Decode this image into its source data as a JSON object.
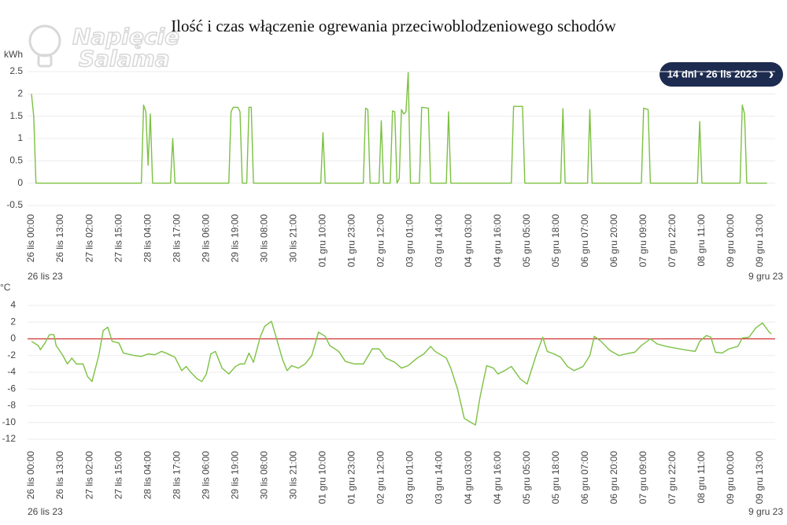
{
  "title": "Ilość i czas włączenie ogrewania przeciwoblodzeniowego schodów",
  "logo": [
    "Napięcie",
    "Salama"
  ],
  "range_button": {
    "label": "14 dni • 26 lis 2023",
    "arrow": "›"
  },
  "chart_data": [
    {
      "type": "line",
      "y_label": "kWh",
      "color": "#7cc142",
      "grid": true,
      "ylim": [
        -0.5,
        2.5
      ],
      "yticks": [
        2.5,
        2,
        1.5,
        1,
        0.5,
        0,
        -0.5
      ],
      "xticks": [
        "26 lis 00:00",
        "26 lis 13:00",
        "27 lis 02:00",
        "27 lis 15:00",
        "28 lis 04:00",
        "28 lis 17:00",
        "29 lis 06:00",
        "29 lis 19:00",
        "30 lis 08:00",
        "30 lis 21:00",
        "01 gru 10:00",
        "01 gru 23:00",
        "02 gru 12:00",
        "03 gru 01:00",
        "03 gru 14:00",
        "04 gru 03:00",
        "04 gru 16:00",
        "05 gru 05:00",
        "05 gru 18:00",
        "06 gru 07:00",
        "06 gru 20:00",
        "07 gru 09:00",
        "07 gru 22:00",
        "08 gru 11:00",
        "09 gru 00:00",
        "09 gru 13:00"
      ],
      "start_label": "26 lis 23",
      "end_label": "9 gru 23",
      "x": [
        "26 lis 00:00",
        "26 lis 01:00",
        "26 lis 02:00",
        "27 lis 12:00",
        "28 lis 01:00",
        "28 lis 02:00",
        "28 lis 03:00",
        "28 lis 04:00",
        "28 lis 05:00",
        "28 lis 06:00",
        "28 lis 14:00",
        "28 lis 15:00",
        "28 lis 16:00",
        "29 lis 16:00",
        "29 lis 17:00",
        "29 lis 18:00",
        "29 lis 20:00",
        "29 lis 21:00",
        "29 lis 22:00",
        "30 lis 00:00",
        "30 lis 01:00",
        "30 lis 02:00",
        "30 lis 03:00",
        "01 gru 09:00",
        "01 gru 10:00",
        "01 gru 11:00",
        "02 gru 04:00",
        "02 gru 05:00",
        "02 gru 06:00",
        "02 gru 07:00",
        "02 gru 11:00",
        "02 gru 12:00",
        "02 gru 13:00",
        "02 gru 16:00",
        "02 gru 17:00",
        "02 gru 18:00",
        "02 gru 19:00",
        "02 gru 20:00",
        "02 gru 21:00",
        "02 gru 22:00",
        "02 gru 23:00",
        "03 gru 00:00",
        "03 gru 01:00",
        "03 gru 05:00",
        "03 gru 06:00",
        "03 gru 09:00",
        "03 gru 10:00",
        "03 gru 17:00",
        "03 gru 18:00",
        "03 gru 19:00",
        "04 gru 12:00",
        "04 gru 22:00",
        "04 gru 23:00",
        "05 gru 03:00",
        "05 gru 04:00",
        "05 gru 20:00",
        "05 gru 21:00",
        "05 gru 22:00",
        "06 gru 08:00",
        "06 gru 09:00",
        "06 gru 10:00",
        "07 gru 08:00",
        "07 gru 09:00",
        "07 gru 11:00",
        "07 gru 12:00",
        "08 gru 09:00",
        "08 gru 10:00",
        "08 gru 11:00",
        "09 gru 04:00",
        "09 gru 05:00",
        "09 gru 06:00",
        "09 gru 07:00",
        "09 gru 16:00"
      ],
      "values": [
        2.0,
        1.5,
        0,
        0,
        0,
        1.75,
        1.6,
        0.4,
        1.55,
        0,
        0,
        1.0,
        0,
        0,
        1.6,
        1.7,
        1.7,
        1.6,
        0,
        0,
        1.7,
        1.7,
        0,
        0,
        1.13,
        0,
        0,
        1.68,
        1.65,
        0,
        0,
        1.4,
        0,
        0,
        1.62,
        1.6,
        0,
        0.1,
        1.65,
        1.55,
        1.6,
        2.48,
        0,
        0,
        1.7,
        1.68,
        0,
        0,
        1.6,
        0,
        0,
        0,
        1.72,
        1.72,
        0,
        0,
        1.67,
        0,
        0,
        1.65,
        0,
        0,
        1.68,
        1.65,
        0,
        0,
        1.38,
        0,
        0,
        1.75,
        1.55,
        0,
        0
      ]
    },
    {
      "type": "line",
      "y_label": "°C",
      "color": "#7cc142",
      "grid": true,
      "ylim": [
        -12,
        4
      ],
      "yticks": [
        4,
        2,
        0,
        -2,
        -4,
        -6,
        -8,
        -10,
        -12
      ],
      "reference_lines": [
        {
          "value": 0,
          "color": "#d32f2f"
        }
      ],
      "xticks": [
        "26 lis 00:00",
        "26 lis 13:00",
        "27 lis 02:00",
        "27 lis 15:00",
        "28 lis 04:00",
        "28 lis 17:00",
        "29 lis 06:00",
        "29 lis 19:00",
        "30 lis 08:00",
        "30 lis 21:00",
        "01 gru 10:00",
        "01 gru 23:00",
        "02 gru 12:00",
        "03 gru 01:00",
        "03 gru 14:00",
        "04 gru 03:00",
        "04 gru 16:00",
        "05 gru 05:00",
        "05 gru 18:00",
        "06 gru 07:00",
        "06 gru 20:00",
        "07 gru 09:00",
        "07 gru 22:00",
        "08 gru 11:00",
        "09 gru 00:00",
        "09 gru 13:00"
      ],
      "start_label": "26 lis 23",
      "end_label": "9 gru 23",
      "x": [
        "26 lis 00:00",
        "26 lis 03:00",
        "26 lis 04:00",
        "26 lis 06:00",
        "26 lis 08:00",
        "26 lis 10:00",
        "26 lis 11:00",
        "26 lis 14:00",
        "26 lis 16:00",
        "26 lis 18:00",
        "26 lis 20:00",
        "26 lis 23:00",
        "27 lis 01:00",
        "27 lis 03:00",
        "27 lis 06:00",
        "27 lis 08:00",
        "27 lis 10:00",
        "27 lis 12:00",
        "27 lis 15:00",
        "27 lis 17:00",
        "27 lis 22:00",
        "28 lis 01:00",
        "28 lis 04:00",
        "28 lis 07:00",
        "28 lis 10:00",
        "28 lis 12:00",
        "28 lis 16:00",
        "28 lis 19:00",
        "28 lis 21:00",
        "28 lis 23:00",
        "29 lis 02:00",
        "29 lis 04:00",
        "29 lis 06:00",
        "29 lis 08:00",
        "29 lis 10:00",
        "29 lis 13:00",
        "29 lis 16:00",
        "29 lis 19:00",
        "29 lis 21:00",
        "29 lis 23:00",
        "30 lis 01:00",
        "30 lis 03:00",
        "30 lis 06:00",
        "30 lis 08:00",
        "30 lis 11:00",
        "30 lis 13:00",
        "30 lis 16:00",
        "30 lis 18:00",
        "30 lis 20:00",
        "30 lis 23:00",
        "01 gru 02:00",
        "01 gru 05:00",
        "01 gru 08:00",
        "01 gru 11:00",
        "01 gru 13:00",
        "01 gru 17:00",
        "01 gru 20:00",
        "02 gru 00:00",
        "02 gru 04:00",
        "02 gru 08:00",
        "02 gru 11:00",
        "02 gru 14:00",
        "02 gru 18:00",
        "02 gru 21:00",
        "03 gru 00:00",
        "03 gru 04:00",
        "03 gru 07:00",
        "03 gru 10:00",
        "03 gru 12:00",
        "03 gru 17:00",
        "03 gru 19:00",
        "03 gru 22:00",
        "04 gru 01:00",
        "04 gru 04:00",
        "04 gru 06:00",
        "04 gru 08:00",
        "04 gru 11:00",
        "04 gru 14:00",
        "04 gru 16:00",
        "04 gru 19:00",
        "04 gru 22:00",
        "05 gru 02:00",
        "05 gru 05:00",
        "05 gru 09:00",
        "05 gru 12:00",
        "05 gru 14:00",
        "05 gru 17:00",
        "05 gru 20:00",
        "05 gru 23:00",
        "06 gru 02:00",
        "06 gru 06:00",
        "06 gru 09:00",
        "06 gru 11:00",
        "06 gru 14:00",
        "06 gru 18:00",
        "06 gru 22:00",
        "07 gru 01:00",
        "07 gru 05:00",
        "07 gru 08:00",
        "07 gru 12:00",
        "07 gru 15:00",
        "07 gru 19:00",
        "07 gru 23:00",
        "08 gru 03:00",
        "08 gru 08:00",
        "08 gru 10:00",
        "08 gru 13:00",
        "08 gru 15:00",
        "08 gru 17:00",
        "08 gru 20:00",
        "08 gru 23:00",
        "09 gru 03:00",
        "09 gru 05:00",
        "09 gru 08:00",
        "09 gru 11:00",
        "09 gru 14:00",
        "09 gru 17:00",
        "09 gru 18:00"
      ],
      "values": [
        -0.3,
        -0.8,
        -1.3,
        -0.5,
        0.5,
        0.5,
        -0.8,
        -2,
        -3,
        -2.3,
        -3,
        -3,
        -4.5,
        -5.1,
        -2,
        1,
        1.4,
        -0.3,
        -0.5,
        -1.7,
        -2,
        -2.1,
        -1.8,
        -1.9,
        -1.5,
        -1.7,
        -2.2,
        -3.8,
        -3.3,
        -4,
        -4.8,
        -5.1,
        -4.2,
        -1.8,
        -1.5,
        -3.5,
        -4.2,
        -3.3,
        -3,
        -3,
        -1.7,
        -2.8,
        0.2,
        1.5,
        2.1,
        0.3,
        -2.5,
        -3.8,
        -3.2,
        -3.5,
        -3,
        -2,
        0.8,
        0.3,
        -0.8,
        -1.5,
        -2.7,
        -3,
        -3,
        -1.2,
        -1.2,
        -2.3,
        -2.8,
        -3.5,
        -3.2,
        -2.3,
        -1.8,
        -0.9,
        -1.5,
        -2.3,
        -3.5,
        -6,
        -9.5,
        -10,
        -10.3,
        -7,
        -3.2,
        -3.5,
        -4.2,
        -3.8,
        -3.3,
        -4.8,
        -5.4,
        -2,
        0.2,
        -1.5,
        -1.8,
        -2.2,
        -3.3,
        -3.8,
        -3.3,
        -2,
        0.3,
        -0.3,
        -1.4,
        -2,
        -1.8,
        -1.6,
        -0.8,
        0,
        -0.6,
        -0.9,
        -1.1,
        -1.3,
        -1.5,
        -0.3,
        0.4,
        0.2,
        -1.6,
        -1.7,
        -1.2,
        -0.9,
        0.1,
        0.2,
        1.3,
        1.9,
        0.8,
        0.6
      ]
    }
  ]
}
